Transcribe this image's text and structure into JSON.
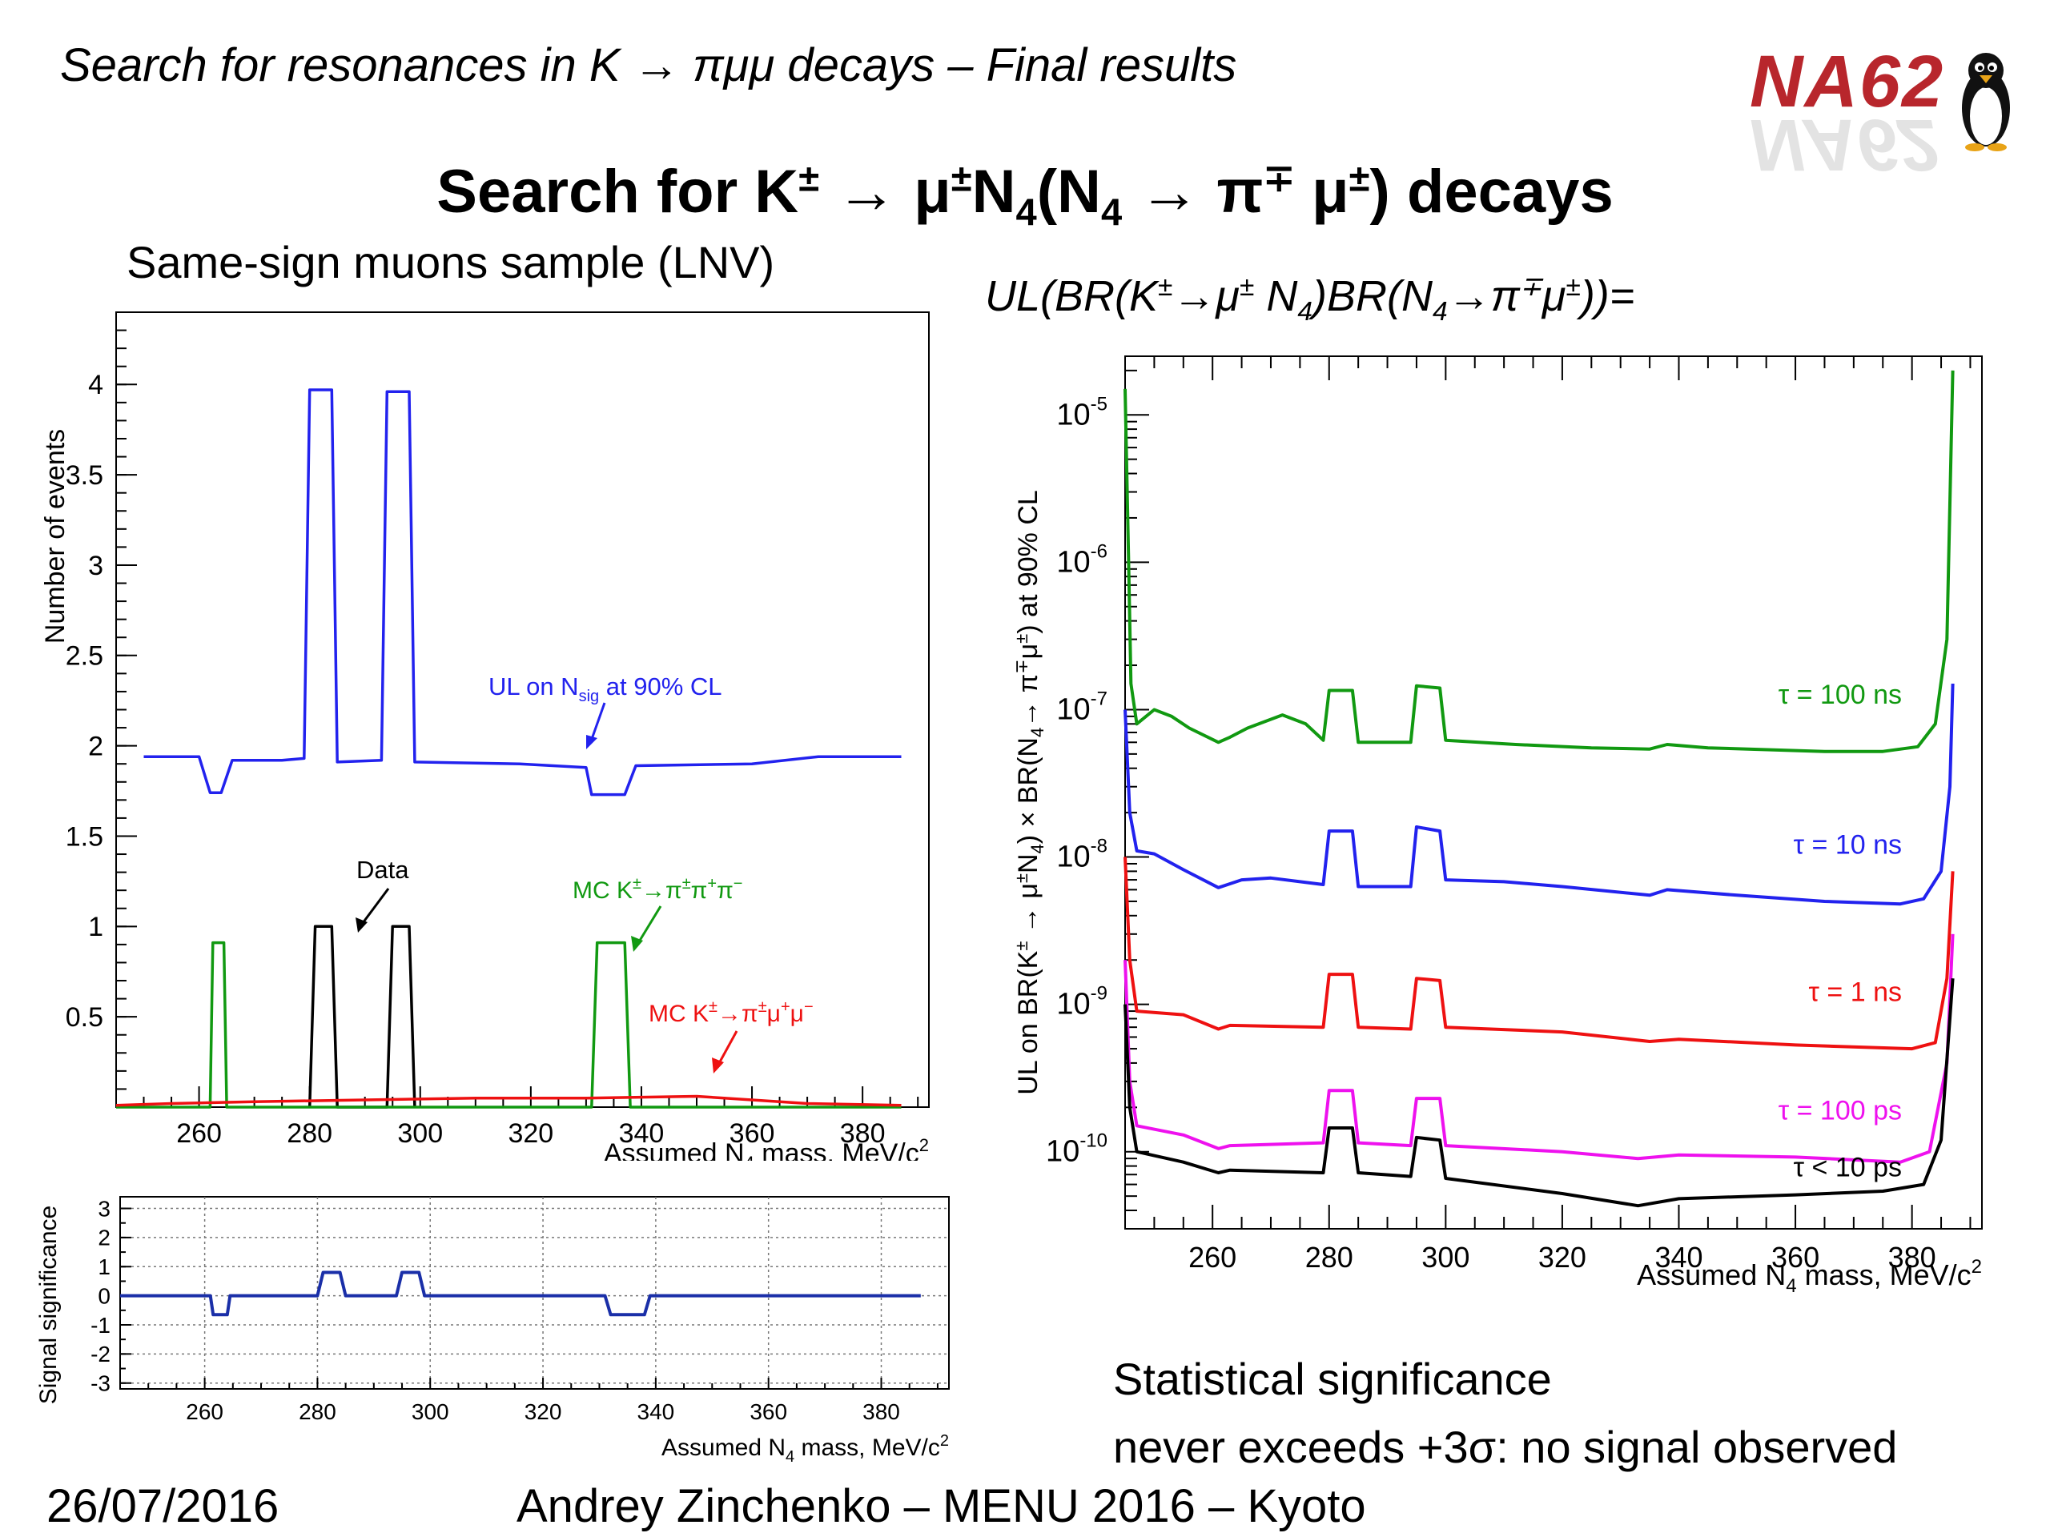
{
  "header": {
    "title": "Search for resonances in K → πμμ decays – Final results",
    "logo_text": "NA62"
  },
  "slide": {
    "title": "Search for K± → μ±N4(N4 → π∓ μ±) decays",
    "subtitle": "Same-sign muons sample (LNV)",
    "formula": "UL(BR(K±→μ± N4)BR(N4→π∓μ±))=",
    "conclusion_line1": "Statistical significance",
    "conclusion_line2": "never exceeds +3σ: no signal observed"
  },
  "footer": {
    "date": "26/07/2016",
    "talk": "Andrey Zinchenko – MENU 2016 – Kyoto"
  },
  "colors": {
    "blue": "#2222ee",
    "green": "#119911",
    "red": "#ee1111",
    "black": "#000000",
    "magenta": "#ee11ee",
    "darkblue": "#1a2fa8"
  },
  "chart_data": [
    {
      "id": "events",
      "type": "line",
      "ylabel": "Number of events",
      "xlabel": "Assumed N4 mass, MeV/c2",
      "xlim": [
        245,
        392
      ],
      "ylim": [
        0,
        4.4
      ],
      "x_ticks": [
        "260",
        "280",
        "300",
        "320",
        "340",
        "360",
        "380"
      ],
      "y_ticks": [
        "0.5",
        "1",
        "1.5",
        "2",
        "2.5",
        "3",
        "3.5",
        "4"
      ],
      "series": [
        {
          "name": "UL on Nsig at 90% CL",
          "color_key": "blue",
          "points": [
            [
              250,
              1.94
            ],
            [
              260,
              1.94
            ],
            [
              262,
              1.74
            ],
            [
              264,
              1.74
            ],
            [
              266,
              1.92
            ],
            [
              275,
              1.92
            ],
            [
              279,
              1.93
            ],
            [
              280,
              3.97
            ],
            [
              284,
              3.97
            ],
            [
              285,
              1.91
            ],
            [
              293,
              1.92
            ],
            [
              294,
              3.96
            ],
            [
              298,
              3.96
            ],
            [
              299,
              1.91
            ],
            [
              318,
              1.9
            ],
            [
              330,
              1.88
            ],
            [
              331,
              1.73
            ],
            [
              337,
              1.73
            ],
            [
              339,
              1.89
            ],
            [
              360,
              1.9
            ],
            [
              372,
              1.94
            ],
            [
              387,
              1.94
            ]
          ]
        },
        {
          "name": "Data",
          "color_key": "black",
          "points": [
            [
              280,
              0
            ],
            [
              281,
              1.0
            ],
            [
              284,
              1.0
            ],
            [
              285,
              0
            ],
            [
              294,
              0
            ],
            [
              295,
              1.0
            ],
            [
              298,
              1.0
            ],
            [
              299,
              0
            ]
          ]
        },
        {
          "name": "MC K±→π±π+π−",
          "color_key": "green",
          "points": [
            [
              245,
              0
            ],
            [
              262,
              0
            ],
            [
              262.5,
              0.91
            ],
            [
              264.5,
              0.91
            ],
            [
              265,
              0
            ],
            [
              331,
              0
            ],
            [
              332,
              0.91
            ],
            [
              337,
              0.91
            ],
            [
              338,
              0
            ],
            [
              387,
              0
            ]
          ]
        },
        {
          "name": "MC K±→π±μ+μ−",
          "color_key": "red",
          "points": [
            [
              245,
              0.01
            ],
            [
              255,
              0.02
            ],
            [
              270,
              0.03
            ],
            [
              290,
              0.04
            ],
            [
              310,
              0.05
            ],
            [
              330,
              0.05
            ],
            [
              350,
              0.06
            ],
            [
              360,
              0.04
            ],
            [
              370,
              0.02
            ],
            [
              387,
              0.01
            ]
          ]
        }
      ],
      "annotations": [
        "UL on Nsig at 90% CL",
        "Data",
        "MC K±→π±π+π−",
        "MC K±→π±μ+μ−"
      ]
    },
    {
      "id": "significance",
      "type": "line",
      "ylabel": "Signal significance",
      "xlabel": "Assumed N4 mass, MeV/c2",
      "xlim": [
        245,
        392
      ],
      "ylim": [
        -3.2,
        3.4
      ],
      "x_ticks": [
        "260",
        "280",
        "300",
        "320",
        "340",
        "360",
        "380"
      ],
      "y_ticks": [
        "-3",
        "-2",
        "-1",
        "0",
        "1",
        "2",
        "3"
      ],
      "grid": true,
      "series": [
        {
          "name": "significance",
          "color_key": "darkblue",
          "points": [
            [
              245,
              0
            ],
            [
              261,
              0
            ],
            [
              261.5,
              -0.65
            ],
            [
              264,
              -0.65
            ],
            [
              264.5,
              0
            ],
            [
              280,
              0
            ],
            [
              281,
              0.8
            ],
            [
              284,
              0.8
            ],
            [
              285,
              0
            ],
            [
              294,
              0
            ],
            [
              295,
              0.8
            ],
            [
              298,
              0.8
            ],
            [
              299,
              0
            ],
            [
              331,
              0
            ],
            [
              332,
              -0.65
            ],
            [
              338,
              -0.65
            ],
            [
              339,
              0
            ],
            [
              387,
              0
            ]
          ]
        }
      ]
    },
    {
      "id": "upper-limit",
      "type": "line",
      "log_y": true,
      "ylabel": "UL on BR(K± → μ±N4) × BR(N4 → π∓μ±) at 90% CL",
      "xlabel": "Assumed N4 mass, MeV/c2",
      "xlim": [
        245,
        392
      ],
      "ylim": [
        3e-11,
        2.5e-05
      ],
      "x_ticks": [
        "260",
        "280",
        "300",
        "320",
        "340",
        "360",
        "380"
      ],
      "y_ticks": [
        "10-10",
        "10-9",
        "10-8",
        "10-7",
        "10-6",
        "10-5"
      ],
      "series": [
        {
          "name": "τ = 100 ns",
          "color_key": "green",
          "points": [
            [
              245,
              1.5e-05
            ],
            [
              245.6,
              1e-06
            ],
            [
              246,
              1.5e-07
            ],
            [
              247,
              8e-08
            ],
            [
              250,
              1e-07
            ],
            [
              253,
              9e-08
            ],
            [
              256,
              7.5e-08
            ],
            [
              261,
              6e-08
            ],
            [
              263,
              6.5e-08
            ],
            [
              266,
              7.5e-08
            ],
            [
              272,
              9.2e-08
            ],
            [
              276,
              8e-08
            ],
            [
              279,
              6.2e-08
            ],
            [
              280,
              1.35e-07
            ],
            [
              284,
              1.35e-07
            ],
            [
              285,
              6e-08
            ],
            [
              294,
              6e-08
            ],
            [
              295,
              1.45e-07
            ],
            [
              299,
              1.4e-07
            ],
            [
              300,
              6.2e-08
            ],
            [
              312,
              5.8e-08
            ],
            [
              325,
              5.5e-08
            ],
            [
              335,
              5.4e-08
            ],
            [
              338,
              5.8e-08
            ],
            [
              345,
              5.5e-08
            ],
            [
              365,
              5.2e-08
            ],
            [
              375,
              5.2e-08
            ],
            [
              381,
              5.6e-08
            ],
            [
              384,
              8e-08
            ],
            [
              386,
              3e-07
            ],
            [
              387,
              2e-05
            ]
          ]
        },
        {
          "name": "τ = 10 ns",
          "color_key": "blue",
          "points": [
            [
              245,
              1e-07
            ],
            [
              245.8,
              2e-08
            ],
            [
              247,
              1.1e-08
            ],
            [
              250,
              1.05e-08
            ],
            [
              255,
              8.2e-09
            ],
            [
              261,
              6.2e-09
            ],
            [
              265,
              7e-09
            ],
            [
              270,
              7.2e-09
            ],
            [
              279,
              6.5e-09
            ],
            [
              280,
              1.5e-08
            ],
            [
              284,
              1.5e-08
            ],
            [
              285,
              6.3e-09
            ],
            [
              294,
              6.3e-09
            ],
            [
              295,
              1.6e-08
            ],
            [
              299,
              1.5e-08
            ],
            [
              300,
              7e-09
            ],
            [
              310,
              6.8e-09
            ],
            [
              320,
              6.3e-09
            ],
            [
              335,
              5.5e-09
            ],
            [
              338,
              6e-09
            ],
            [
              350,
              5.5e-09
            ],
            [
              365,
              5e-09
            ],
            [
              378,
              4.8e-09
            ],
            [
              382,
              5.2e-09
            ],
            [
              385,
              8e-09
            ],
            [
              386.5,
              3e-08
            ],
            [
              387,
              1.5e-07
            ]
          ]
        },
        {
          "name": "τ = 1 ns",
          "color_key": "red",
          "points": [
            [
              245,
              1e-08
            ],
            [
              245.8,
              2e-09
            ],
            [
              247,
              9e-10
            ],
            [
              255,
              8.5e-10
            ],
            [
              261,
              6.8e-10
            ],
            [
              263,
              7.2e-10
            ],
            [
              279,
              7e-10
            ],
            [
              280,
              1.6e-09
            ],
            [
              284,
              1.6e-09
            ],
            [
              285,
              7e-10
            ],
            [
              294,
              6.8e-10
            ],
            [
              295,
              1.5e-09
            ],
            [
              299,
              1.45e-09
            ],
            [
              300,
              7e-10
            ],
            [
              320,
              6.5e-10
            ],
            [
              335,
              5.6e-10
            ],
            [
              340,
              5.8e-10
            ],
            [
              360,
              5.3e-10
            ],
            [
              380,
              5e-10
            ],
            [
              384,
              5.5e-10
            ],
            [
              386,
              1.5e-09
            ],
            [
              387,
              8e-09
            ]
          ]
        },
        {
          "name": "τ = 100 ps",
          "color_key": "magenta",
          "points": [
            [
              245,
              2e-09
            ],
            [
              245.8,
              3e-10
            ],
            [
              247,
              1.5e-10
            ],
            [
              255,
              1.3e-10
            ],
            [
              261,
              1.05e-10
            ],
            [
              263,
              1.1e-10
            ],
            [
              279,
              1.15e-10
            ],
            [
              280,
              2.6e-10
            ],
            [
              284,
              2.6e-10
            ],
            [
              285,
              1.15e-10
            ],
            [
              294,
              1.1e-10
            ],
            [
              295,
              2.3e-10
            ],
            [
              299,
              2.3e-10
            ],
            [
              300,
              1.1e-10
            ],
            [
              320,
              1e-10
            ],
            [
              333,
              9e-11
            ],
            [
              340,
              9.5e-11
            ],
            [
              360,
              9.2e-11
            ],
            [
              378,
              8.5e-11
            ],
            [
              383,
              1e-10
            ],
            [
              386,
              4e-10
            ],
            [
              387,
              3e-09
            ]
          ]
        },
        {
          "name": "τ < 10 ps",
          "color_key": "black",
          "points": [
            [
              245,
              1e-09
            ],
            [
              245.8,
              2e-10
            ],
            [
              247,
              1e-10
            ],
            [
              255,
              8.5e-11
            ],
            [
              261,
              7.2e-11
            ],
            [
              263,
              7.5e-11
            ],
            [
              279,
              7.2e-11
            ],
            [
              280,
              1.45e-10
            ],
            [
              284,
              1.45e-10
            ],
            [
              285,
              7.2e-11
            ],
            [
              294,
              6.8e-11
            ],
            [
              295,
              1.25e-10
            ],
            [
              299,
              1.2e-10
            ],
            [
              300,
              6.6e-11
            ],
            [
              320,
              5.2e-11
            ],
            [
              333,
              4.3e-11
            ],
            [
              340,
              4.8e-11
            ],
            [
              360,
              5.1e-11
            ],
            [
              375,
              5.4e-11
            ],
            [
              382,
              6e-11
            ],
            [
              385,
              1.2e-10
            ],
            [
              387,
              1.5e-09
            ]
          ]
        }
      ],
      "labels": [
        "τ = 100 ns",
        "τ = 10 ns",
        "τ = 1 ns",
        "τ = 100 ps",
        "τ < 10 ps"
      ]
    }
  ]
}
